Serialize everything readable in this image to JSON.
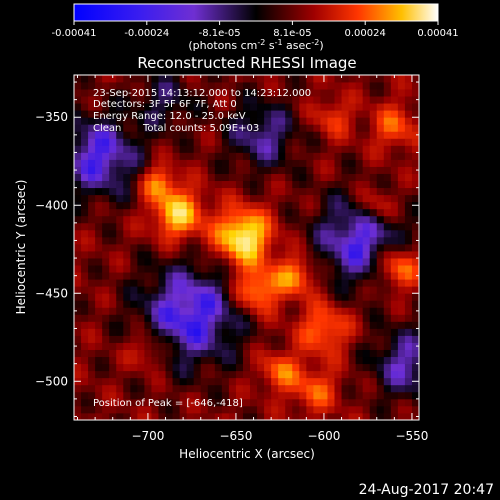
{
  "colorbar": {
    "tick_labels": [
      "-0.00041",
      "-0.00024",
      "-8.1e-05",
      "8.1e-05",
      "0.00024",
      "0.00041"
    ],
    "range": [
      -0.00041,
      0.00041
    ],
    "units_main": "(photons cm",
    "units_exp1": "-2",
    "units_mid": " s",
    "units_exp2": "-1",
    "units_asec": " asec",
    "units_exp3": "-2",
    "units_close": ")"
  },
  "chart_data": {
    "type": "heatmap",
    "title": "Reconstructed RHESSI Image",
    "xlabel": "Heliocentric X (arcsec)",
    "ylabel": "Heliocentric Y (arcsec)",
    "xlim": [
      -742,
      -546
    ],
    "ylim": [
      -522,
      -326
    ],
    "x_ticks": [
      -700,
      -650,
      -600,
      -550
    ],
    "y_ticks": [
      -350,
      -400,
      -450,
      -500
    ],
    "colormap": [
      "#0000ff",
      "#6f2fd2",
      "#000000",
      "#9a0000",
      "#ff3600",
      "#ffd200",
      "#ffffff"
    ],
    "peak_position": [
      -646,
      -418
    ],
    "annotations": {
      "time_range": "23-Sep-2015 14:13:12.000 to 14:23:12.000",
      "detectors": "Detectors: 3F 5F 6F 7F, Att 0",
      "energy_range": "Energy Range: 12.0 - 25.0 keV",
      "clean": "Clean",
      "total_counts": "Total counts: 5.09E+03",
      "peak_label": "Position of Peak = [-646,-418]"
    }
  },
  "footer_date": "24-Aug-2017 20:47"
}
